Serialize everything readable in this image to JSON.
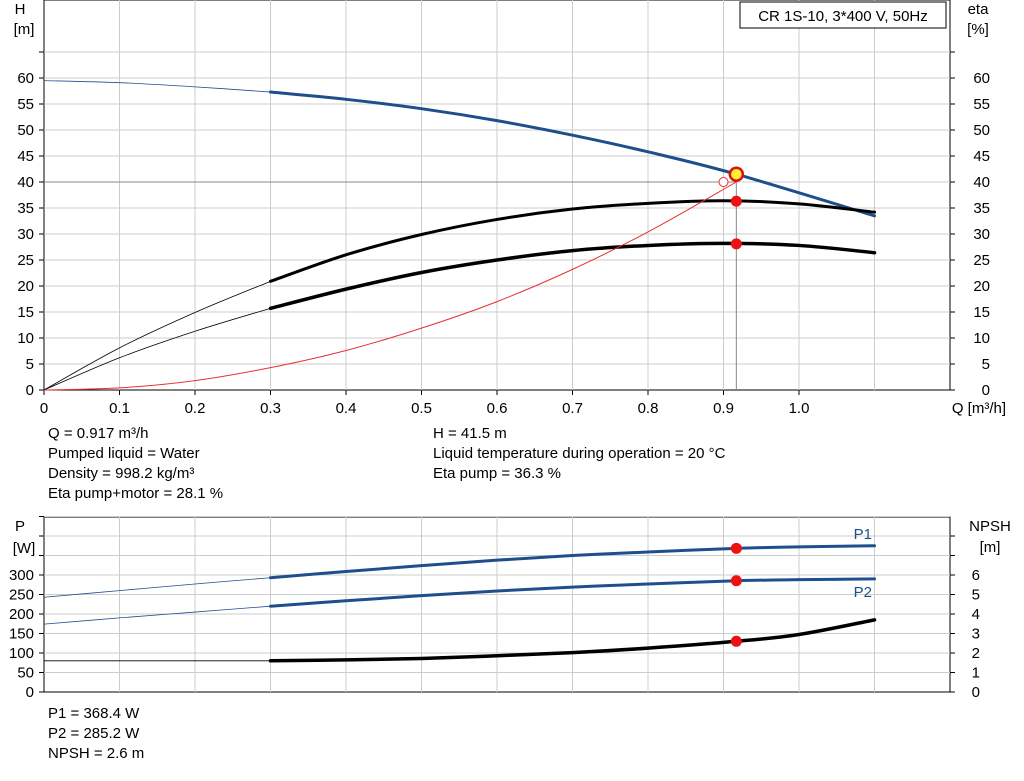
{
  "chart_data": [
    {
      "type": "line",
      "title": "CR 1S-10, 3*400 V, 50Hz",
      "xlabel": "Q [m³/h]",
      "ylabel_left": [
        "H",
        "[m]"
      ],
      "ylabel_right": [
        "eta",
        "[%]"
      ],
      "xlim": [
        0,
        1.2
      ],
      "ylim": [
        0,
        65
      ],
      "x_ticks": [
        0,
        0.1,
        0.2,
        0.3,
        0.4,
        0.5,
        0.6,
        0.7,
        0.8,
        0.9,
        1.0
      ],
      "x_tick_labels": [
        "0",
        "0.1",
        "0.2",
        "0.3",
        "0.4",
        "0.5",
        "0.6",
        "0.7",
        "0.8",
        "0.9",
        "1.0"
      ],
      "y_ticks": [
        0,
        5,
        10,
        15,
        20,
        25,
        30,
        35,
        40,
        45,
        50,
        55,
        60
      ],
      "grid": true,
      "duty_point": {
        "q": 0.917,
        "h": 41.5,
        "eta_pump": 36.3,
        "eta_total": 28.1
      },
      "series": [
        {
          "key": "H",
          "color": "#1f4e8c",
          "x": [
            0,
            0.1,
            0.2,
            0.3,
            0.4,
            0.5,
            0.6,
            0.7,
            0.8,
            0.917,
            1.1
          ],
          "y": [
            59.5,
            59.1,
            58.3,
            57.3,
            55.9,
            54.1,
            51.8,
            49.0,
            45.8,
            41.5,
            33.5
          ],
          "dim_before": 0.3
        },
        {
          "key": "eta_pump",
          "color": "#000000",
          "x": [
            0,
            0.1,
            0.2,
            0.3,
            0.4,
            0.5,
            0.6,
            0.7,
            0.8,
            0.9,
            1.0,
            1.1
          ],
          "y": [
            0,
            8.1,
            14.9,
            20.9,
            26.0,
            29.9,
            32.8,
            34.8,
            35.9,
            36.4,
            35.8,
            34.2
          ],
          "dim_before": 0.3
        },
        {
          "key": "eta_total",
          "color": "#000000",
          "x": [
            0,
            0.1,
            0.2,
            0.3,
            0.4,
            0.5,
            0.6,
            0.7,
            0.8,
            0.9,
            1.0,
            1.1
          ],
          "y": [
            0,
            6.2,
            11.3,
            15.7,
            19.4,
            22.6,
            25.0,
            26.8,
            27.8,
            28.2,
            27.8,
            26.4
          ],
          "dim_before": 0.3,
          "bold": true
        },
        {
          "key": "system",
          "color": "#e83030",
          "x": [
            0,
            0.1,
            0.2,
            0.3,
            0.4,
            0.5,
            0.6,
            0.7,
            0.8,
            0.917
          ],
          "y": [
            0,
            0.4,
            1.8,
            4.3,
            7.6,
            11.9,
            17.0,
            23.2,
            30.4,
            40.0
          ],
          "thin": true
        }
      ]
    },
    {
      "type": "line",
      "ylabel_left": [
        "P",
        "[W]"
      ],
      "ylabel_right": [
        "NPSH",
        "[m]"
      ],
      "xlim": [
        0,
        1.2
      ],
      "ylim": [
        0,
        400
      ],
      "y_ticks": [
        0,
        50,
        100,
        150,
        200,
        250,
        300
      ],
      "y2_ticks": [
        0,
        1,
        2,
        3,
        4,
        5,
        6
      ],
      "y2lim": [
        0,
        8
      ],
      "grid": true,
      "series": [
        {
          "key": "P1",
          "name": "P1",
          "color": "#1f4e8c",
          "x": [
            0,
            0.1,
            0.2,
            0.3,
            0.4,
            0.5,
            0.6,
            0.7,
            0.8,
            0.917,
            1.0,
            1.1
          ],
          "y": [
            243,
            260,
            277,
            293,
            309,
            324,
            338,
            350,
            359,
            368.4,
            372,
            375
          ],
          "dim_before": 0.3
        },
        {
          "key": "P2",
          "name": "P2",
          "color": "#1f4e8c",
          "x": [
            0,
            0.1,
            0.2,
            0.3,
            0.4,
            0.5,
            0.6,
            0.7,
            0.8,
            0.917,
            1.0,
            1.1
          ],
          "y": [
            174,
            190,
            205,
            220,
            234,
            247,
            259,
            269,
            277,
            285.2,
            288,
            290
          ],
          "dim_before": 0.3
        },
        {
          "key": "NPSH",
          "color": "#000000",
          "axis": "right",
          "x": [
            0,
            0.1,
            0.2,
            0.3,
            0.4,
            0.5,
            0.6,
            0.7,
            0.8,
            0.917,
            1.0,
            1.1
          ],
          "y": [
            1.6,
            1.6,
            1.6,
            1.6,
            1.65,
            1.72,
            1.86,
            2.02,
            2.25,
            2.6,
            2.95,
            3.7
          ],
          "dim_before": 0.3,
          "bold": true
        }
      ],
      "duty_point": {
        "q": 0.917,
        "p1": 368.4,
        "p2": 285.2,
        "npsh": 2.6
      }
    }
  ],
  "info_top_left": [
    "Q = 0.917 m³/h",
    "Pumped liquid = Water",
    "Density = 998.2 kg/m³",
    "Eta pump+motor = 28.1 %"
  ],
  "info_top_right": [
    "H = 41.5 m",
    "Liquid temperature during operation = 20 °C",
    "Eta pump = 36.3 %"
  ],
  "info_bottom": [
    "P1 = 368.4 W",
    "P2 = 285.2 W",
    "NPSH = 2.6 m"
  ],
  "colors": {
    "curve_blue": "#1f4e8c",
    "grid": "#cccccc",
    "system_curve": "#e83030",
    "marker_red": "#ee1111",
    "marker_yellow": "#ffee33"
  }
}
